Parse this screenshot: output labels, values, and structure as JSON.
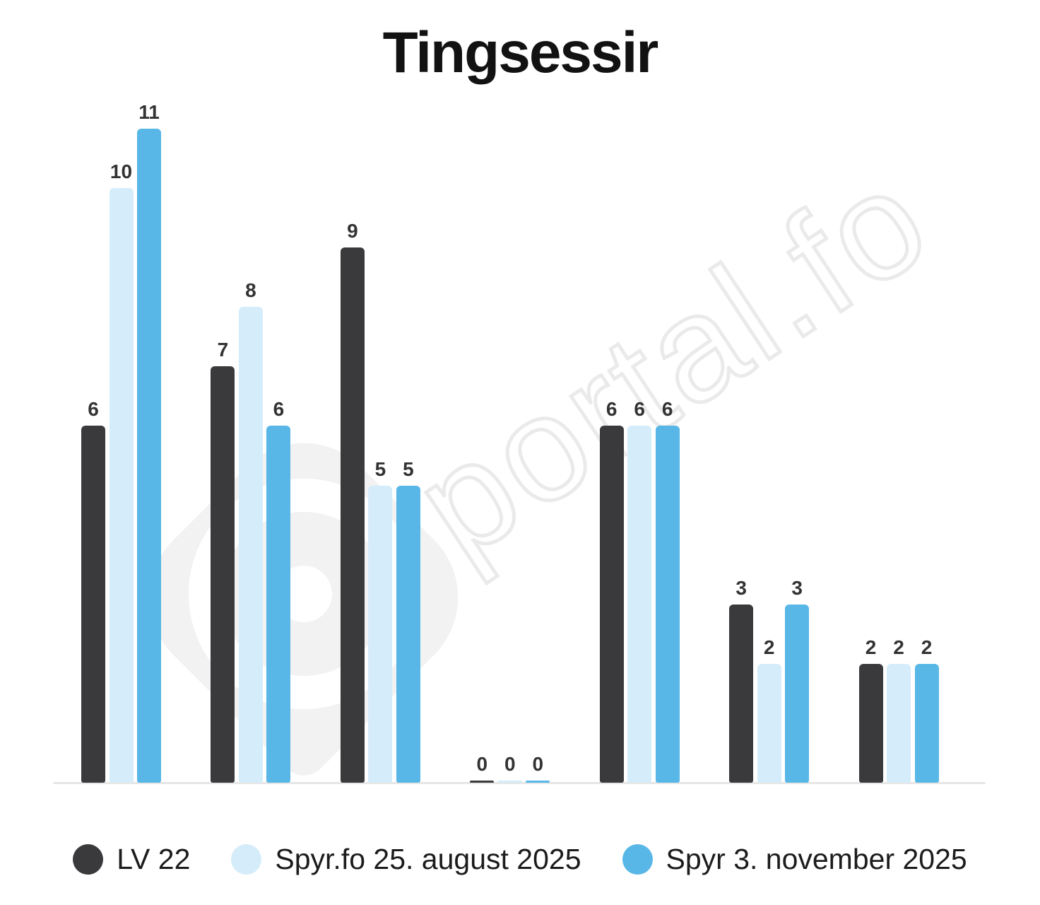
{
  "watermark": {
    "text": "portal.fo"
  },
  "chart_data": {
    "type": "bar",
    "title": "Tingsessir",
    "categories": [
      "",
      "",
      "",
      "",
      "",
      "",
      ""
    ],
    "series": [
      {
        "name": "LV 22",
        "color": "#3a3a3c",
        "values": [
          6,
          7,
          9,
          0,
          6,
          3,
          2
        ]
      },
      {
        "name": "Spyr.fo 25. august 2025",
        "color": "#d5ecfa",
        "values": [
          10,
          8,
          5,
          0,
          6,
          2,
          2
        ]
      },
      {
        "name": "Spyr 3. november 2025",
        "color": "#58b7e6",
        "values": [
          11,
          6,
          5,
          0,
          6,
          3,
          2
        ]
      }
    ],
    "value_labels": true,
    "ylim": [
      0,
      11
    ],
    "grid": false,
    "y_axis_labels": false,
    "x_axis_labels": false,
    "legend_position": "bottom",
    "axis_color": "#e6e6e6",
    "value_label_color": "#333333",
    "background_color": "#ffffff"
  }
}
